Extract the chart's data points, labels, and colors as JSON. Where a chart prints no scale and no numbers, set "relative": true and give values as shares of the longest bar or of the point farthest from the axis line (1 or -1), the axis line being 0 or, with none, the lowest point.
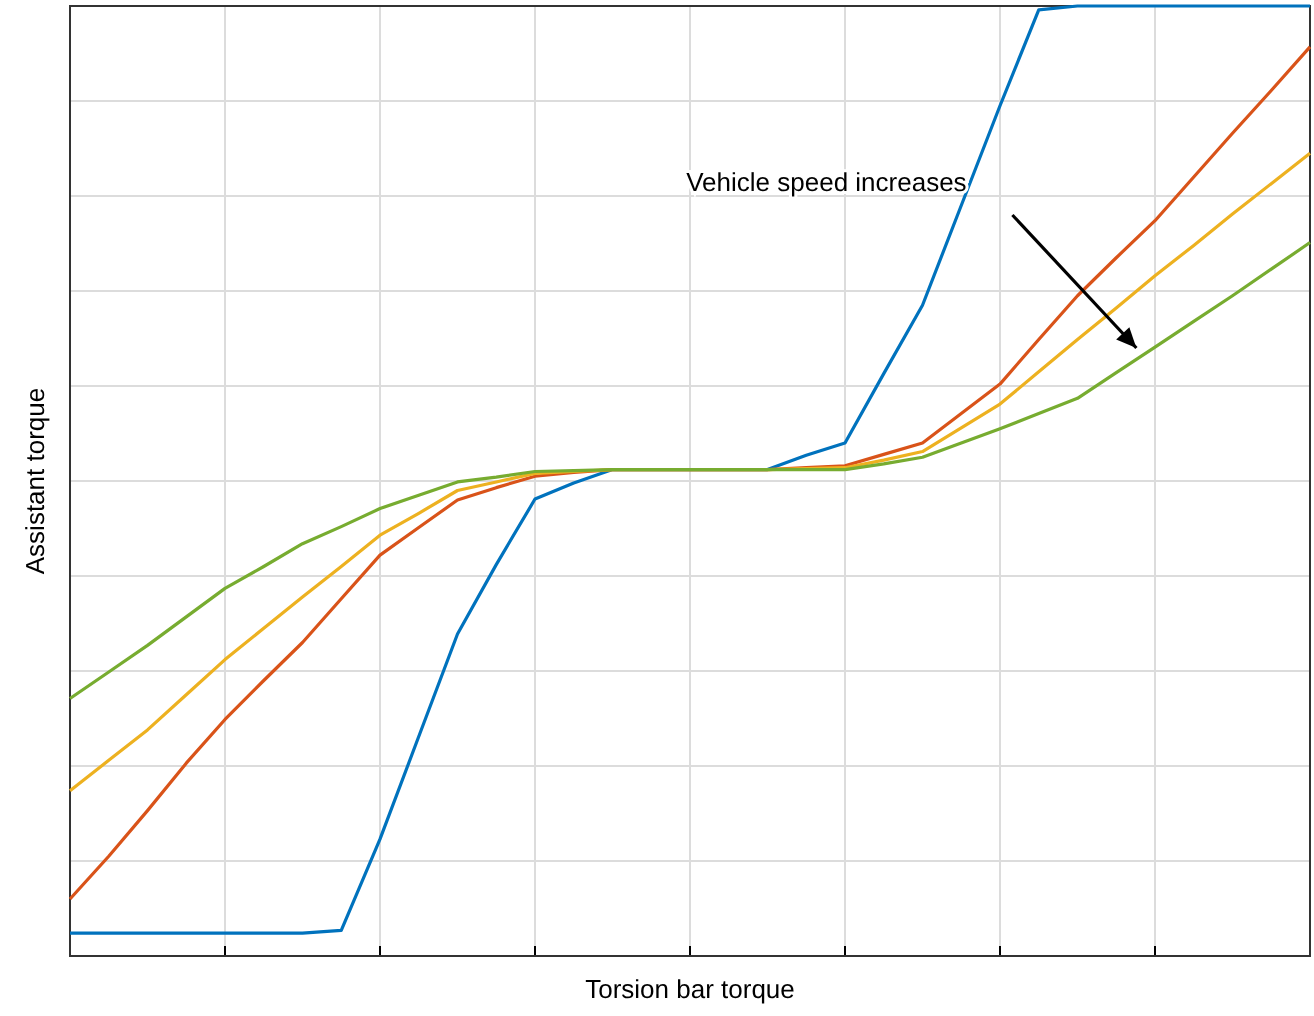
{
  "chart_data": {
    "type": "line",
    "xlabel": "Torsion bar torque",
    "ylabel": "Assistant torque",
    "relative": true,
    "grid": true,
    "categories": [
      null,
      null,
      null,
      null,
      null,
      null,
      null,
      null,
      null,
      null,
      null,
      null,
      null,
      null,
      null,
      null,
      null,
      null,
      null,
      null,
      null,
      null,
      null,
      null,
      null,
      null,
      null,
      null,
      null,
      null,
      null,
      null,
      null
    ],
    "annotations": [
      "Vehicle speed increases"
    ],
    "series": [
      {
        "color": "#0072bd",
        "values": [
          0.024,
          0.024,
          0.024,
          0.024,
          0.024,
          0.024,
          0.024,
          0.027,
          0.123,
          0.231,
          0.339,
          0.412,
          0.481,
          0.498,
          0.512,
          0.512,
          0.512,
          0.512,
          0.512,
          0.527,
          0.54,
          0.613,
          0.685,
          0.79,
          0.895,
          0.996,
          1,
          1,
          1,
          1,
          1,
          1,
          1
        ]
      },
      {
        "color": "#d95319",
        "values": [
          0.06,
          0.105,
          0.153,
          0.203,
          0.249,
          0.29,
          0.33,
          0.376,
          0.422,
          0.451,
          0.48,
          0.493,
          0.505,
          0.509,
          0.512,
          0.512,
          0.512,
          0.512,
          0.512,
          0.514,
          0.516,
          0.528,
          0.54,
          0.571,
          0.602,
          0.649,
          0.695,
          0.735,
          0.774,
          0.82,
          0.866,
          0.911,
          0.957
        ]
      },
      {
        "color": "#edb120",
        "values": [
          0.174,
          0.206,
          0.238,
          0.275,
          0.312,
          0.345,
          0.378,
          0.41,
          0.443,
          0.466,
          0.49,
          0.499,
          0.508,
          0.51,
          0.512,
          0.512,
          0.512,
          0.512,
          0.512,
          0.513,
          0.514,
          0.522,
          0.531,
          0.556,
          0.581,
          0.615,
          0.649,
          0.682,
          0.716,
          0.748,
          0.781,
          0.813,
          0.845
        ]
      },
      {
        "color": "#77ac30",
        "values": [
          0.271,
          0.299,
          0.327,
          0.357,
          0.387,
          0.41,
          0.434,
          0.452,
          0.471,
          0.485,
          0.499,
          0.504,
          0.51,
          0.511,
          0.512,
          0.512,
          0.512,
          0.512,
          0.512,
          0.512,
          0.512,
          0.518,
          0.525,
          0.54,
          0.555,
          0.571,
          0.587,
          0.614,
          0.641,
          0.668,
          0.695,
          0.723,
          0.751
        ]
      }
    ]
  }
}
